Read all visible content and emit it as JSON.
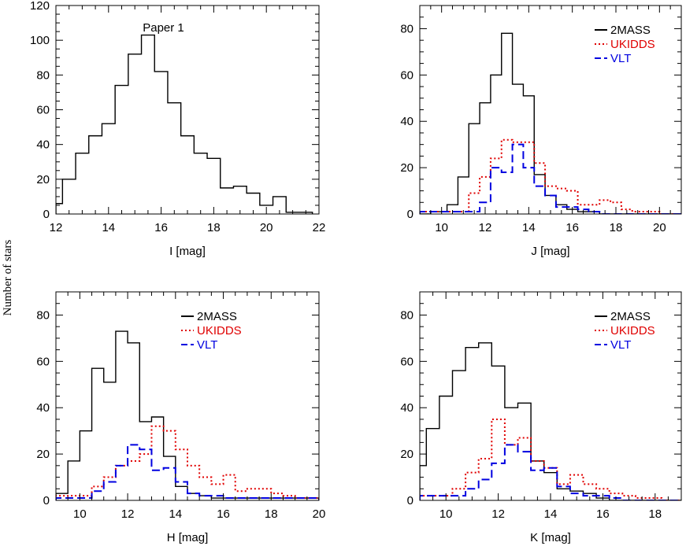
{
  "figure": {
    "ylabel": "Number of stars"
  },
  "chart_data": [
    {
      "id": "I",
      "type": "histogram",
      "xlabel": "I [mag]",
      "xlim": [
        12,
        22
      ],
      "ylim": [
        0,
        120
      ],
      "xticks": [
        12,
        14,
        16,
        18,
        20,
        22
      ],
      "yticks": [
        0,
        20,
        40,
        60,
        80,
        100,
        120
      ],
      "annotation": "Paper 1",
      "series": [
        {
          "name": "",
          "color": "#000000",
          "dash": "solid",
          "edges": [
            12.0,
            12.25,
            12.75,
            13.25,
            13.75,
            14.25,
            14.75,
            15.25,
            15.75,
            16.25,
            16.75,
            17.25,
            17.75,
            18.25,
            18.75,
            19.25,
            19.75,
            20.25,
            20.75,
            21.25,
            21.75
          ],
          "counts": [
            6,
            20,
            35,
            45,
            52,
            74,
            92,
            103,
            82,
            64,
            45,
            35,
            32,
            15,
            16,
            12,
            5,
            10,
            1,
            1
          ]
        }
      ]
    },
    {
      "id": "J",
      "type": "histogram",
      "xlabel": "J [mag]",
      "xlim": [
        9,
        21
      ],
      "ylim": [
        0,
        90
      ],
      "xticks": [
        10,
        12,
        14,
        16,
        18,
        20
      ],
      "yticks": [
        0,
        20,
        40,
        60,
        80
      ],
      "legend_position": "top-right",
      "series": [
        {
          "name": "2MASS",
          "color": "#000000",
          "dash": "solid",
          "edges": [
            9.0,
            9.5,
            10.25,
            10.75,
            11.25,
            11.75,
            12.25,
            12.75,
            13.25,
            13.75,
            14.25,
            14.75,
            15.25,
            15.75,
            16.25,
            16.75,
            17.25,
            17.75,
            21.0
          ],
          "counts": [
            0,
            1,
            4,
            16,
            39,
            48,
            60,
            78,
            56,
            51,
            17,
            8,
            4,
            2,
            1,
            1,
            0,
            0
          ]
        },
        {
          "name": "UKIDDS",
          "color": "#e00000",
          "dash": "dotted",
          "edges": [
            9.0,
            11.25,
            11.75,
            12.25,
            12.75,
            13.25,
            13.75,
            14.25,
            14.75,
            15.25,
            15.75,
            16.25,
            16.75,
            17.25,
            17.75,
            18.25,
            18.75,
            19.25,
            20.0,
            21.0
          ],
          "counts": [
            1,
            9,
            16,
            24,
            32,
            31,
            31,
            22,
            12,
            11,
            10,
            4,
            4,
            6,
            5,
            2,
            1,
            1,
            0
          ]
        },
        {
          "name": "VLT",
          "color": "#0000e0",
          "dash": "dashed",
          "edges": [
            9.0,
            11.75,
            12.25,
            12.75,
            13.25,
            13.75,
            14.25,
            14.75,
            15.25,
            15.75,
            16.25,
            16.75,
            17.25,
            21.0
          ],
          "counts": [
            1,
            5,
            20,
            18,
            30,
            20,
            12,
            8,
            3,
            3,
            2,
            1,
            0
          ]
        }
      ]
    },
    {
      "id": "H",
      "type": "histogram",
      "xlabel": "H [mag]",
      "xlim": [
        9,
        20
      ],
      "ylim": [
        0,
        90
      ],
      "xticks": [
        10,
        12,
        14,
        16,
        18,
        20
      ],
      "yticks": [
        0,
        20,
        40,
        60,
        80
      ],
      "legend_position": "top-right",
      "series": [
        {
          "name": "2MASS",
          "color": "#000000",
          "dash": "solid",
          "edges": [
            9.0,
            9.5,
            10.0,
            10.5,
            11.0,
            11.5,
            12.0,
            12.5,
            13.0,
            13.5,
            14.0,
            14.5,
            15.0,
            15.5,
            16.0,
            20.0
          ],
          "counts": [
            3,
            17,
            30,
            57,
            51,
            73,
            68,
            34,
            36,
            19,
            6,
            3,
            2,
            1,
            1
          ]
        },
        {
          "name": "UKIDDS",
          "color": "#e00000",
          "dash": "dotted",
          "edges": [
            9.0,
            10.5,
            11.0,
            11.5,
            12.0,
            12.5,
            13.0,
            13.5,
            14.0,
            14.5,
            15.0,
            15.5,
            16.0,
            16.5,
            17.0,
            18.0,
            18.5,
            19.0,
            20.0
          ],
          "counts": [
            2,
            6,
            10,
            15,
            17,
            20,
            32,
            30,
            22,
            15,
            10,
            7,
            11,
            4,
            5,
            3,
            2,
            1
          ]
        },
        {
          "name": "VLT",
          "color": "#0000e0",
          "dash": "dashed",
          "edges": [
            9.0,
            10.5,
            11.0,
            11.5,
            12.0,
            12.5,
            13.0,
            13.5,
            14.0,
            14.5,
            15.0,
            15.5,
            16.0,
            20.0
          ],
          "counts": [
            1,
            4,
            8,
            15,
            24,
            22,
            13,
            14,
            8,
            3,
            2,
            2,
            1
          ]
        }
      ]
    },
    {
      "id": "K",
      "type": "histogram",
      "xlabel": "K [mag]",
      "xlim": [
        9,
        19
      ],
      "ylim": [
        0,
        90
      ],
      "xticks": [
        10,
        12,
        14,
        16,
        18
      ],
      "yticks": [
        0,
        20,
        40,
        60,
        80
      ],
      "legend_position": "top-right",
      "series": [
        {
          "name": "2MASS",
          "color": "#000000",
          "dash": "solid",
          "edges": [
            9.0,
            9.25,
            9.75,
            10.25,
            10.75,
            11.25,
            11.75,
            12.25,
            12.75,
            13.25,
            13.75,
            14.25,
            14.75,
            15.25,
            15.75,
            16.25,
            19.0
          ],
          "counts": [
            15,
            31,
            45,
            56,
            66,
            68,
            58,
            40,
            42,
            17,
            12,
            5,
            4,
            3,
            1,
            0
          ]
        },
        {
          "name": "UKIDDS",
          "color": "#e00000",
          "dash": "dotted",
          "edges": [
            9.0,
            10.25,
            10.75,
            11.25,
            11.75,
            12.25,
            12.75,
            13.25,
            13.75,
            14.25,
            14.75,
            15.25,
            15.75,
            16.25,
            16.75,
            17.25,
            18.25,
            19.0
          ],
          "counts": [
            2,
            5,
            12,
            18,
            35,
            24,
            27,
            17,
            14,
            7,
            11,
            7,
            5,
            3,
            2,
            1,
            0
          ]
        },
        {
          "name": "VLT",
          "color": "#0000e0",
          "dash": "dashed",
          "edges": [
            9.0,
            10.75,
            11.25,
            11.75,
            12.25,
            12.75,
            13.25,
            13.75,
            14.25,
            14.75,
            15.25,
            15.75,
            16.25,
            16.75,
            19.0
          ],
          "counts": [
            2,
            5,
            9,
            16,
            24,
            21,
            13,
            14,
            6,
            3,
            2,
            2,
            1,
            0
          ]
        }
      ]
    }
  ]
}
